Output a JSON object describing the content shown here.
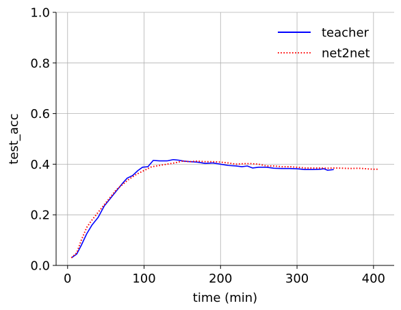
{
  "chart_data": {
    "type": "line",
    "title": "",
    "xlabel": "time (min)",
    "ylabel": "test_acc",
    "xlim": [
      -15,
      427
    ],
    "ylim": [
      0.0,
      1.0
    ],
    "xticks": [
      0,
      100,
      200,
      300,
      400
    ],
    "xtick_labels": [
      "0",
      "100",
      "200",
      "300",
      "400"
    ],
    "yticks": [
      0.0,
      0.2,
      0.4,
      0.6,
      0.8,
      1.0
    ],
    "ytick_labels": [
      "0.0",
      "0.2",
      "0.4",
      "0.6",
      "0.8",
      "1.0"
    ],
    "grid": true,
    "legend_position": "top-right",
    "series": [
      {
        "name": "teacher",
        "color": "#0000ff",
        "style": "solid",
        "x": [
          5,
          12,
          18,
          25,
          32,
          40,
          48,
          56,
          64,
          72,
          78,
          85,
          92,
          98,
          105,
          112,
          120,
          130,
          138,
          145,
          152,
          160,
          170,
          180,
          190,
          200,
          210,
          220,
          228,
          235,
          242,
          250,
          260,
          270,
          280,
          290,
          300,
          310,
          320,
          330,
          335,
          340,
          348
        ],
        "y": [
          0.03,
          0.045,
          0.08,
          0.125,
          0.16,
          0.19,
          0.235,
          0.265,
          0.295,
          0.325,
          0.345,
          0.355,
          0.375,
          0.388,
          0.39,
          0.415,
          0.413,
          0.413,
          0.418,
          0.416,
          0.412,
          0.41,
          0.408,
          0.403,
          0.405,
          0.4,
          0.395,
          0.393,
          0.39,
          0.393,
          0.385,
          0.388,
          0.388,
          0.384,
          0.383,
          0.383,
          0.382,
          0.379,
          0.379,
          0.38,
          0.382,
          0.376,
          0.379
        ]
      },
      {
        "name": "net2net",
        "color": "#ff0000",
        "style": "dotted",
        "x": [
          5,
          12,
          18,
          25,
          32,
          40,
          48,
          56,
          64,
          72,
          80,
          90,
          100,
          110,
          120,
          130,
          140,
          150,
          160,
          170,
          180,
          190,
          200,
          210,
          220,
          230,
          240,
          250,
          260,
          270,
          280,
          290,
          300,
          310,
          320,
          330,
          340,
          350,
          360,
          370,
          380,
          390,
          400,
          407
        ],
        "y": [
          0.03,
          0.05,
          0.1,
          0.15,
          0.18,
          0.21,
          0.24,
          0.27,
          0.3,
          0.32,
          0.34,
          0.36,
          0.375,
          0.39,
          0.395,
          0.4,
          0.405,
          0.412,
          0.41,
          0.412,
          0.41,
          0.41,
          0.408,
          0.405,
          0.4,
          0.402,
          0.402,
          0.4,
          0.393,
          0.393,
          0.39,
          0.39,
          0.388,
          0.385,
          0.385,
          0.385,
          0.384,
          0.385,
          0.384,
          0.383,
          0.384,
          0.382,
          0.38,
          0.38
        ]
      }
    ]
  }
}
